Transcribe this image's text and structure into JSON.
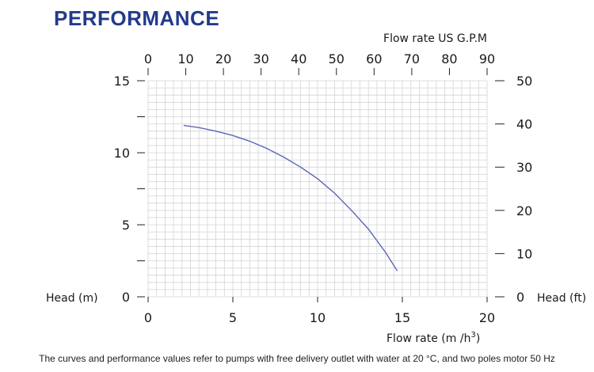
{
  "heading": "PERFORMANCE",
  "footnote": "The curves and performance values refer to pumps with free delivery outlet with water at 20 °C, and two poles motor 50 Hz",
  "colors": {
    "heading": "#233a8c",
    "curve": "#5b66b8",
    "grid": "#d4d4d4"
  },
  "chart_data": {
    "type": "line",
    "title": "",
    "xlabel": "Flow rate  (m /h",
    "xlabel_sup": "3",
    "xlabel_suffix": ")",
    "x2label": "Flow rate US  G.P.M",
    "ylabel": "Head (m)",
    "y2label": "Head (ft)",
    "xlim": [
      0,
      20
    ],
    "ylim": [
      0,
      15
    ],
    "x2lim": [
      0,
      90
    ],
    "y2lim": [
      0,
      50
    ],
    "xticks": [
      "0",
      "5",
      "10",
      "15",
      "20"
    ],
    "yticks": [
      "0",
      "5",
      "10",
      "15"
    ],
    "x2ticks": [
      "0",
      "10",
      "20",
      "30",
      "40",
      "50",
      "60",
      "70",
      "80",
      "90"
    ],
    "y2ticks": [
      "0",
      "10",
      "20",
      "30",
      "40",
      "50"
    ],
    "grid": true,
    "series": [
      {
        "x": [
          2.1,
          3,
          4,
          5,
          6,
          7,
          8,
          9,
          10,
          11,
          12,
          13,
          14,
          14.7
        ],
        "y": [
          11.9,
          11.75,
          11.5,
          11.2,
          10.8,
          10.3,
          9.7,
          9.0,
          8.2,
          7.2,
          6.0,
          4.7,
          3.1,
          1.8
        ]
      }
    ]
  }
}
